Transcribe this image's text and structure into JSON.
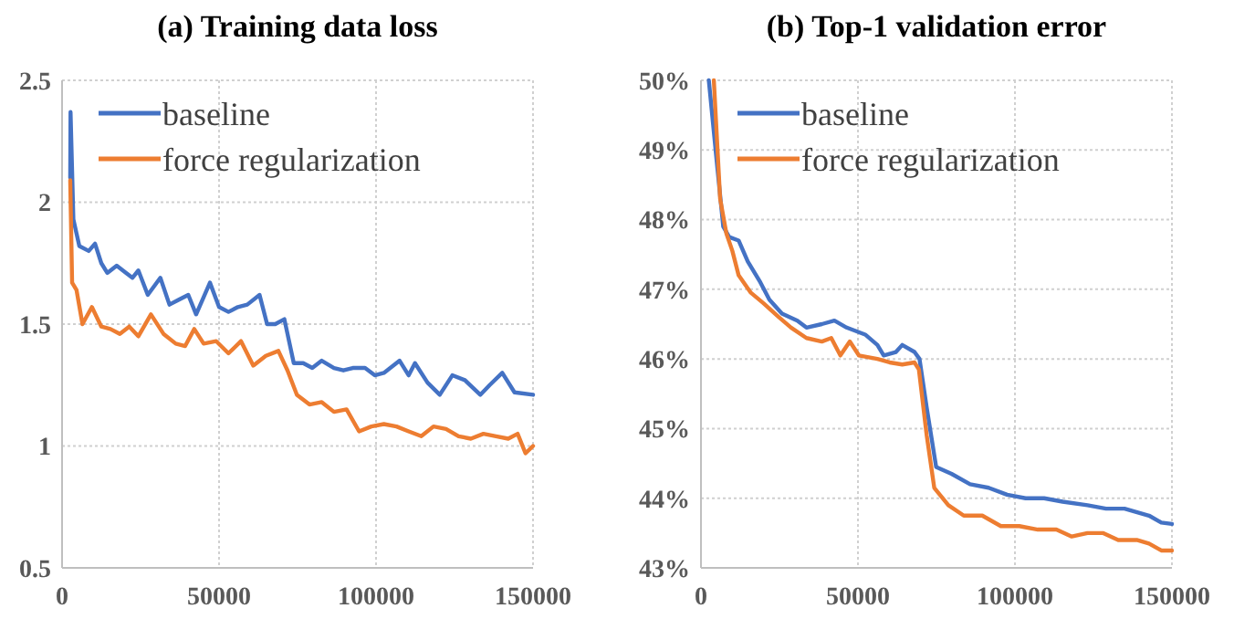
{
  "chart_data": [
    {
      "type": "line",
      "title": "(a) Training data loss",
      "xlim": [
        0,
        150000
      ],
      "xticks": [
        0,
        50000,
        100000,
        150000
      ],
      "ylim": [
        0.5,
        2.5
      ],
      "yticks": [
        0.5,
        1,
        1.5,
        2,
        2.5
      ],
      "grid": true,
      "legend": "top",
      "line_style": "solid",
      "marker": "none",
      "series": [
        {
          "name": "baseline",
          "color": "#4472c4",
          "x": [
            2600,
            2700,
            3600,
            5500,
            8500,
            10500,
            12500,
            14400,
            17400,
            20400,
            22400,
            24300,
            27300,
            31300,
            34200,
            37200,
            40200,
            42700,
            47100,
            50000,
            53000,
            56000,
            59000,
            62900,
            65300,
            67900,
            70800,
            73800,
            76800,
            79700,
            82700,
            86600,
            89600,
            92600,
            96500,
            99600,
            102500,
            107500,
            110400,
            112400,
            116400,
            120300,
            124300,
            128300,
            133200,
            136200,
            140200,
            144100,
            150000
          ],
          "values": [
            2.1,
            2.37,
            1.93,
            1.82,
            1.8,
            1.83,
            1.75,
            1.71,
            1.74,
            1.71,
            1.69,
            1.72,
            1.62,
            1.69,
            1.58,
            1.6,
            1.62,
            1.54,
            1.67,
            1.57,
            1.55,
            1.57,
            1.58,
            1.62,
            1.5,
            1.5,
            1.52,
            1.34,
            1.34,
            1.32,
            1.35,
            1.32,
            1.31,
            1.32,
            1.32,
            1.29,
            1.3,
            1.35,
            1.29,
            1.34,
            1.26,
            1.21,
            1.29,
            1.27,
            1.21,
            1.25,
            1.3,
            1.22,
            1.21
          ]
        },
        {
          "name": "force regularization",
          "color": "#ed7d31",
          "x": [
            2600,
            3200,
            4600,
            6500,
            9500,
            12500,
            15400,
            18400,
            21400,
            24300,
            28300,
            32300,
            36200,
            39200,
            42100,
            45100,
            49100,
            53000,
            57000,
            60900,
            64900,
            68900,
            71800,
            74800,
            78800,
            82700,
            86600,
            90600,
            94600,
            98500,
            102500,
            106500,
            110400,
            114400,
            118300,
            122300,
            126300,
            130200,
            134200,
            138200,
            142100,
            145100,
            147600,
            150000
          ],
          "values": [
            2.09,
            1.67,
            1.64,
            1.5,
            1.57,
            1.49,
            1.48,
            1.46,
            1.49,
            1.45,
            1.54,
            1.46,
            1.42,
            1.41,
            1.48,
            1.42,
            1.43,
            1.38,
            1.43,
            1.33,
            1.37,
            1.39,
            1.31,
            1.21,
            1.17,
            1.18,
            1.14,
            1.15,
            1.06,
            1.08,
            1.09,
            1.08,
            1.06,
            1.04,
            1.08,
            1.07,
            1.04,
            1.03,
            1.05,
            1.04,
            1.03,
            1.05,
            0.97,
            1.0
          ]
        }
      ]
    },
    {
      "type": "line",
      "title": "(b) Top-1 validation error",
      "xlim": [
        0,
        150000
      ],
      "xticks": [
        0,
        50000,
        100000,
        150000
      ],
      "ylim": [
        43,
        50
      ],
      "yticks": [
        {
          "value": 43,
          "label": "43%"
        },
        {
          "value": 44,
          "label": "44%"
        },
        {
          "value": 45,
          "label": "45%"
        },
        {
          "value": 46,
          "label": "46%"
        },
        {
          "value": 47,
          "label": "47%"
        },
        {
          "value": 48,
          "label": "48%"
        },
        {
          "value": 49,
          "label": "49%"
        },
        {
          "value": 50,
          "label": "50%"
        }
      ],
      "grid": true,
      "legend": "top",
      "line_style": "solid",
      "marker": "none",
      "series": [
        {
          "name": "baseline",
          "color": "#4472c4",
          "x": [
            2500,
            5100,
            7100,
            9000,
            12000,
            14900,
            18900,
            21800,
            25800,
            30700,
            33600,
            38500,
            42500,
            46400,
            52300,
            56200,
            58200,
            62100,
            64100,
            68000,
            69600,
            71900,
            74900,
            79800,
            85700,
            91600,
            97500,
            103400,
            109300,
            115200,
            123100,
            129000,
            134900,
            142700,
            146600,
            150000
          ],
          "values": [
            50,
            48.8,
            47.9,
            47.75,
            47.7,
            47.4,
            47.1,
            46.85,
            46.65,
            46.55,
            46.45,
            46.5,
            46.55,
            46.45,
            46.35,
            46.2,
            46.05,
            46.1,
            46.2,
            46.1,
            46.0,
            45.3,
            44.45,
            44.35,
            44.2,
            44.15,
            44.05,
            44.0,
            44.0,
            43.95,
            43.9,
            43.85,
            43.85,
            43.75,
            43.65,
            43.63
          ]
        },
        {
          "name": "force regularization",
          "color": "#ed7d31",
          "x": [
            4100,
            6100,
            8100,
            10000,
            12000,
            15900,
            19900,
            24800,
            28700,
            33600,
            38500,
            41500,
            44400,
            47400,
            50300,
            56200,
            60100,
            64100,
            68000,
            69400,
            71900,
            74300,
            78800,
            83700,
            89600,
            95500,
            101400,
            107300,
            113200,
            118100,
            123100,
            128000,
            132900,
            138800,
            142700,
            146600,
            150000
          ],
          "values": [
            50,
            48.3,
            47.8,
            47.55,
            47.2,
            46.95,
            46.8,
            46.6,
            46.45,
            46.3,
            46.25,
            46.3,
            46.05,
            46.25,
            46.05,
            46.0,
            45.95,
            45.92,
            45.95,
            45.85,
            44.9,
            44.15,
            43.9,
            43.75,
            43.75,
            43.6,
            43.6,
            43.55,
            43.55,
            43.45,
            43.5,
            43.5,
            43.4,
            43.4,
            43.35,
            43.25,
            43.25
          ]
        }
      ]
    }
  ]
}
